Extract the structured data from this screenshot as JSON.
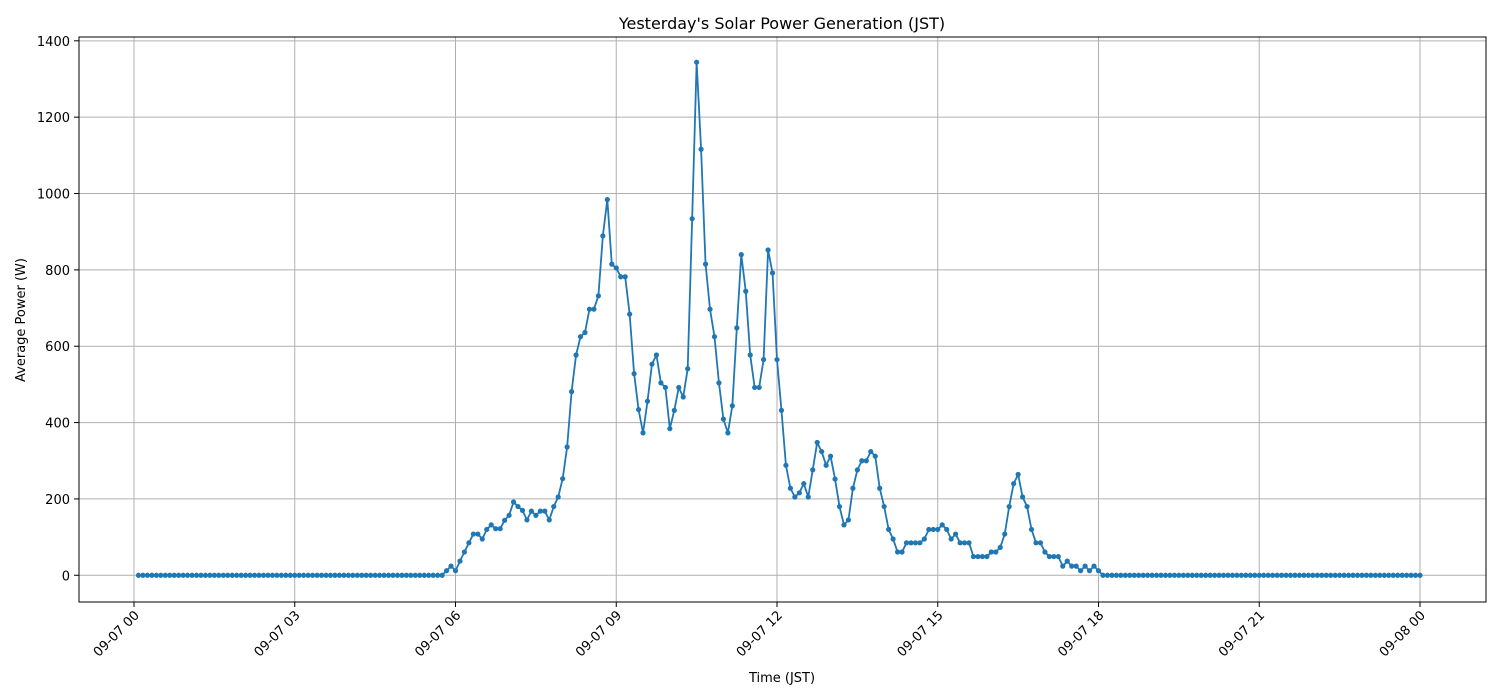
{
  "chart_data": {
    "type": "line",
    "title": "Yesterday's Solar Power Generation (JST)",
    "xlabel": "Time (JST)",
    "ylabel": "Average Power (W)",
    "x_range": [
      "2024-09-07T00:00",
      "2024-09-08T00:00"
    ],
    "x_ticks": [
      {
        "value": "2024-09-07T00:00",
        "label": "09-07 00"
      },
      {
        "value": "2024-09-07T03:00",
        "label": "09-07 03"
      },
      {
        "value": "2024-09-07T06:00",
        "label": "09-07 06"
      },
      {
        "value": "2024-09-07T09:00",
        "label": "09-07 09"
      },
      {
        "value": "2024-09-07T12:00",
        "label": "09-07 12"
      },
      {
        "value": "2024-09-07T15:00",
        "label": "09-07 15"
      },
      {
        "value": "2024-09-07T18:00",
        "label": "09-07 18"
      },
      {
        "value": "2024-09-07T21:00",
        "label": "09-07 21"
      },
      {
        "value": "2024-09-08T00:00",
        "label": "09-08 00"
      }
    ],
    "y_ticks": [
      0,
      200,
      400,
      600,
      800,
      1000,
      1200,
      1400
    ],
    "ylim": [
      -70,
      1410
    ],
    "grid": true,
    "line_color": "#1f77b4",
    "marker": "circle",
    "series": [
      {
        "x": [
          "2024-09-07T00:05",
          "2024-09-07T00:10",
          "2024-09-07T00:15",
          "2024-09-07T00:20",
          "2024-09-07T00:25",
          "2024-09-07T00:30",
          "2024-09-07T00:35",
          "2024-09-07T00:40",
          "2024-09-07T00:45",
          "2024-09-07T00:50",
          "2024-09-07T00:55",
          "2024-09-07T01:00",
          "2024-09-07T01:05",
          "2024-09-07T01:10",
          "2024-09-07T01:15",
          "2024-09-07T01:20",
          "2024-09-07T01:25",
          "2024-09-07T01:30",
          "2024-09-07T01:35",
          "2024-09-07T01:40",
          "2024-09-07T01:45",
          "2024-09-07T01:50",
          "2024-09-07T01:55",
          "2024-09-07T02:00",
          "2024-09-07T02:05",
          "2024-09-07T02:10",
          "2024-09-07T02:15",
          "2024-09-07T02:20",
          "2024-09-07T02:25",
          "2024-09-07T02:30",
          "2024-09-07T02:35",
          "2024-09-07T02:40",
          "2024-09-07T02:45",
          "2024-09-07T02:50",
          "2024-09-07T02:55",
          "2024-09-07T03:00",
          "2024-09-07T03:05",
          "2024-09-07T03:10",
          "2024-09-07T03:15",
          "2024-09-07T03:20",
          "2024-09-07T03:25",
          "2024-09-07T03:30",
          "2024-09-07T03:35",
          "2024-09-07T03:40",
          "2024-09-07T03:45",
          "2024-09-07T03:50",
          "2024-09-07T03:55",
          "2024-09-07T04:00",
          "2024-09-07T04:05",
          "2024-09-07T04:10",
          "2024-09-07T04:15",
          "2024-09-07T04:20",
          "2024-09-07T04:25",
          "2024-09-07T04:30",
          "2024-09-07T04:35",
          "2024-09-07T04:40",
          "2024-09-07T04:45",
          "2024-09-07T04:50",
          "2024-09-07T04:55",
          "2024-09-07T05:00",
          "2024-09-07T05:05",
          "2024-09-07T05:10",
          "2024-09-07T05:15",
          "2024-09-07T05:20",
          "2024-09-07T05:25",
          "2024-09-07T05:30",
          "2024-09-07T05:35",
          "2024-09-07T05:40",
          "2024-09-07T05:45",
          "2024-09-07T05:50",
          "2024-09-07T05:55",
          "2024-09-07T06:00",
          "2024-09-07T06:05",
          "2024-09-07T06:10",
          "2024-09-07T06:15",
          "2024-09-07T06:20",
          "2024-09-07T06:25",
          "2024-09-07T06:30",
          "2024-09-07T06:35",
          "2024-09-07T06:40",
          "2024-09-07T06:45",
          "2024-09-07T06:50",
          "2024-09-07T06:55",
          "2024-09-07T07:00",
          "2024-09-07T07:05",
          "2024-09-07T07:10",
          "2024-09-07T07:15",
          "2024-09-07T07:20",
          "2024-09-07T07:25",
          "2024-09-07T07:30",
          "2024-09-07T07:35",
          "2024-09-07T07:40",
          "2024-09-07T07:45",
          "2024-09-07T07:50",
          "2024-09-07T07:55",
          "2024-09-07T08:00",
          "2024-09-07T08:05",
          "2024-09-07T08:10",
          "2024-09-07T08:15",
          "2024-09-07T08:20",
          "2024-09-07T08:25",
          "2024-09-07T08:30",
          "2024-09-07T08:35",
          "2024-09-07T08:40",
          "2024-09-07T08:45",
          "2024-09-07T08:50",
          "2024-09-07T08:55",
          "2024-09-07T09:00",
          "2024-09-07T09:05",
          "2024-09-07T09:10",
          "2024-09-07T09:15",
          "2024-09-07T09:20",
          "2024-09-07T09:25",
          "2024-09-07T09:30",
          "2024-09-07T09:35",
          "2024-09-07T09:40",
          "2024-09-07T09:45",
          "2024-09-07T09:50",
          "2024-09-07T09:55",
          "2024-09-07T10:00",
          "2024-09-07T10:05",
          "2024-09-07T10:10",
          "2024-09-07T10:15",
          "2024-09-07T10:20",
          "2024-09-07T10:25",
          "2024-09-07T10:30",
          "2024-09-07T10:35",
          "2024-09-07T10:40",
          "2024-09-07T10:45",
          "2024-09-07T10:50",
          "2024-09-07T10:55",
          "2024-09-07T11:00",
          "2024-09-07T11:05",
          "2024-09-07T11:10",
          "2024-09-07T11:15",
          "2024-09-07T11:20",
          "2024-09-07T11:25",
          "2024-09-07T11:30",
          "2024-09-07T11:35",
          "2024-09-07T11:40",
          "2024-09-07T11:45",
          "2024-09-07T11:50",
          "2024-09-07T11:55",
          "2024-09-07T12:00",
          "2024-09-07T12:05",
          "2024-09-07T12:10",
          "2024-09-07T12:15",
          "2024-09-07T12:20",
          "2024-09-07T12:25",
          "2024-09-07T12:30",
          "2024-09-07T12:35",
          "2024-09-07T12:40",
          "2024-09-07T12:45",
          "2024-09-07T12:50",
          "2024-09-07T12:55",
          "2024-09-07T13:00",
          "2024-09-07T13:05",
          "2024-09-07T13:10",
          "2024-09-07T13:15",
          "2024-09-07T13:20",
          "2024-09-07T13:25",
          "2024-09-07T13:30",
          "2024-09-07T13:35",
          "2024-09-07T13:40",
          "2024-09-07T13:45",
          "2024-09-07T13:50",
          "2024-09-07T13:55",
          "2024-09-07T14:00",
          "2024-09-07T14:05",
          "2024-09-07T14:10",
          "2024-09-07T14:15",
          "2024-09-07T14:20",
          "2024-09-07T14:25",
          "2024-09-07T14:30",
          "2024-09-07T14:35",
          "2024-09-07T14:40",
          "2024-09-07T14:45",
          "2024-09-07T14:50",
          "2024-09-07T14:55",
          "2024-09-07T15:00",
          "2024-09-07T15:05",
          "2024-09-07T15:10",
          "2024-09-07T15:15",
          "2024-09-07T15:20",
          "2024-09-07T15:25",
          "2024-09-07T15:30",
          "2024-09-07T15:35",
          "2024-09-07T15:40",
          "2024-09-07T15:45",
          "2024-09-07T15:50",
          "2024-09-07T15:55",
          "2024-09-07T16:00",
          "2024-09-07T16:05",
          "2024-09-07T16:10",
          "2024-09-07T16:15",
          "2024-09-07T16:20",
          "2024-09-07T16:25",
          "2024-09-07T16:30",
          "2024-09-07T16:35",
          "2024-09-07T16:40",
          "2024-09-07T16:45",
          "2024-09-07T16:50",
          "2024-09-07T16:55",
          "2024-09-07T17:00",
          "2024-09-07T17:05",
          "2024-09-07T17:10",
          "2024-09-07T17:15",
          "2024-09-07T17:20",
          "2024-09-07T17:25",
          "2024-09-07T17:30",
          "2024-09-07T17:35",
          "2024-09-07T17:40",
          "2024-09-07T17:45",
          "2024-09-07T17:50",
          "2024-09-07T17:55",
          "2024-09-07T18:00",
          "2024-09-07T18:05",
          "2024-09-07T18:10",
          "2024-09-07T18:15",
          "2024-09-07T18:20",
          "2024-09-07T18:25",
          "2024-09-07T18:30",
          "2024-09-07T18:35",
          "2024-09-07T18:40",
          "2024-09-07T18:45",
          "2024-09-07T18:50",
          "2024-09-07T18:55",
          "2024-09-07T19:00",
          "2024-09-07T19:05",
          "2024-09-07T19:10",
          "2024-09-07T19:15",
          "2024-09-07T19:20",
          "2024-09-07T19:25",
          "2024-09-07T19:30",
          "2024-09-07T19:35",
          "2024-09-07T19:40",
          "2024-09-07T19:45",
          "2024-09-07T19:50",
          "2024-09-07T19:55",
          "2024-09-07T20:00",
          "2024-09-07T20:05",
          "2024-09-07T20:10",
          "2024-09-07T20:15",
          "2024-09-07T20:20",
          "2024-09-07T20:25",
          "2024-09-07T20:30",
          "2024-09-07T20:35",
          "2024-09-07T20:40",
          "2024-09-07T20:45",
          "2024-09-07T20:50",
          "2024-09-07T20:55",
          "2024-09-07T21:00",
          "2024-09-07T21:05",
          "2024-09-07T21:10",
          "2024-09-07T21:15",
          "2024-09-07T21:20",
          "2024-09-07T21:25",
          "2024-09-07T21:30",
          "2024-09-07T21:35",
          "2024-09-07T21:40",
          "2024-09-07T21:45",
          "2024-09-07T21:50",
          "2024-09-07T21:55",
          "2024-09-07T22:00",
          "2024-09-07T22:05",
          "2024-09-07T22:10",
          "2024-09-07T22:15",
          "2024-09-07T22:20",
          "2024-09-07T22:25",
          "2024-09-07T22:30",
          "2024-09-07T22:35",
          "2024-09-07T22:40",
          "2024-09-07T22:45",
          "2024-09-07T22:50",
          "2024-09-07T22:55",
          "2024-09-07T23:00",
          "2024-09-07T23:05",
          "2024-09-07T23:10",
          "2024-09-07T23:15",
          "2024-09-07T23:20",
          "2024-09-07T23:25",
          "2024-09-07T23:30",
          "2024-09-07T23:35",
          "2024-09-07T23:40",
          "2024-09-07T23:45",
          "2024-09-07T23:50",
          "2024-09-07T23:55",
          "2024-09-08T00:00"
        ],
        "values": [
          0,
          0,
          0,
          0,
          0,
          0,
          0,
          0,
          0,
          0,
          0,
          0,
          0,
          0,
          0,
          0,
          0,
          0,
          0,
          0,
          0,
          0,
          0,
          0,
          0,
          0,
          0,
          0,
          0,
          0,
          0,
          0,
          0,
          0,
          0,
          0,
          0,
          0,
          0,
          0,
          0,
          0,
          0,
          0,
          0,
          0,
          0,
          0,
          0,
          0,
          0,
          0,
          0,
          0,
          0,
          0,
          0,
          0,
          0,
          0,
          0,
          0,
          0,
          0,
          0,
          0,
          0,
          0,
          0,
          12,
          24,
          12,
          37,
          61,
          85,
          108,
          108,
          95,
          120,
          132,
          122,
          122,
          144,
          157,
          192,
          180,
          170,
          145,
          168,
          157,
          168,
          168,
          145,
          180,
          205,
          253,
          336,
          481,
          577,
          625,
          636,
          697,
          697,
          732,
          889,
          984,
          815,
          805,
          782,
          782,
          684,
          528,
          434,
          373,
          456,
          553,
          577,
          504,
          492,
          384,
          432,
          492,
          467,
          541,
          934,
          1344,
          1116,
          815,
          697,
          625,
          504,
          409,
          373,
          444,
          648,
          840,
          744,
          577,
          492,
          492,
          565,
          852,
          792,
          565,
          432,
          288,
          228,
          205,
          216,
          240,
          205,
          276,
          348,
          324,
          288,
          312,
          252,
          180,
          132,
          145,
          228,
          276,
          300,
          300,
          324,
          312,
          228,
          180,
          120,
          95,
          61,
          61,
          85,
          85,
          85,
          85,
          95,
          120,
          120,
          120,
          132,
          120,
          95,
          108,
          85,
          85,
          85,
          49,
          49,
          49,
          49,
          61,
          61,
          73,
          108,
          180,
          240,
          264,
          205,
          180,
          120,
          85,
          85,
          61,
          49,
          49,
          49,
          24,
          37,
          24,
          24,
          12,
          24,
          12,
          24,
          12,
          0,
          0,
          0,
          0,
          0,
          0,
          0,
          0,
          0,
          0,
          0,
          0,
          0,
          0,
          0,
          0,
          0,
          0,
          0,
          0,
          0,
          0,
          0,
          0,
          0,
          0,
          0,
          0,
          0,
          0,
          0,
          0,
          0,
          0,
          0,
          0,
          0,
          0,
          0,
          0,
          0,
          0,
          0,
          0,
          0,
          0,
          0,
          0,
          0,
          0,
          0,
          0,
          0,
          0,
          0,
          0,
          0,
          0,
          0,
          0,
          0,
          0,
          0,
          0,
          0,
          0,
          0,
          0,
          0,
          0,
          0,
          0
        ]
      }
    ]
  }
}
